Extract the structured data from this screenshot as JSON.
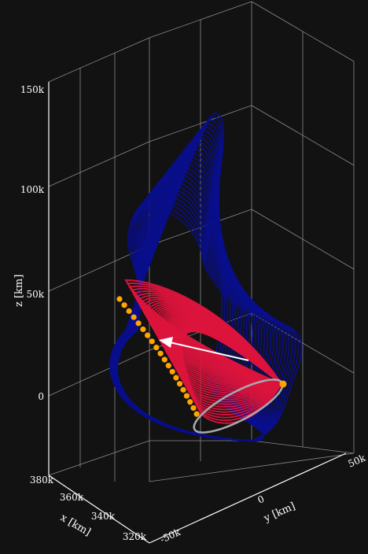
{
  "chart_data": {
    "type": "line3d",
    "title": "",
    "background": "#121212",
    "grid": true,
    "xlabel": "x [km]",
    "ylabel": "y [km]",
    "zlabel": "z [km]",
    "x_ticks": [
      "320k",
      "340k",
      "360k",
      "380k"
    ],
    "y_ticks": [
      "-50k",
      "0",
      "50k"
    ],
    "z_ticks": [
      "0",
      "50k",
      "100k",
      "150k"
    ],
    "xlim": [
      315000,
      385000
    ],
    "ylim": [
      -60000,
      60000
    ],
    "zlim": [
      -25000,
      165000
    ],
    "series": [
      {
        "kind": "family of halo orbits (outer, dark blue)",
        "color": "#0a0f8c",
        "count": 28
      },
      {
        "kind": "family of halo orbits (inner, red)",
        "color": "#dc143c",
        "count": 40
      },
      {
        "kind": "perilune points",
        "color": "#ffa500"
      },
      {
        "kind": "reference orbit (grey ellipse)",
        "color": "#a0a0a0"
      },
      {
        "kind": "direction arrow",
        "color": "#ffffff"
      }
    ]
  }
}
